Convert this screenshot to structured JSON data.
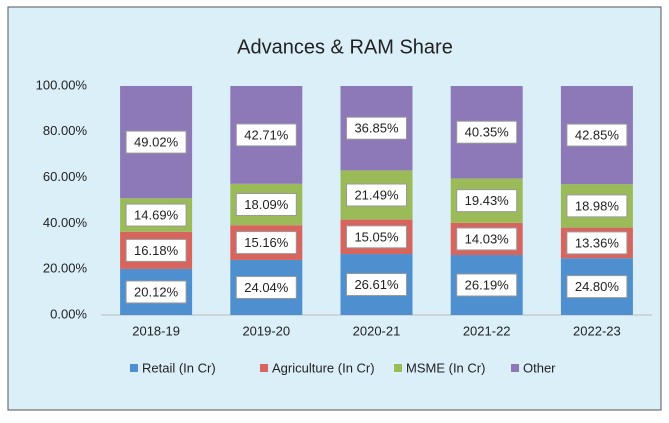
{
  "chart_data": {
    "type": "stacked_bar",
    "title": "Advances & RAM Share",
    "categories": [
      "2018-19",
      "2019-20",
      "2020-21",
      "2021-22",
      "2022-23"
    ],
    "series": [
      {
        "name": "Retail (In Cr)",
        "color": "#4e8fcf",
        "values": [
          20.12,
          24.04,
          26.61,
          26.19,
          24.8
        ],
        "value_labels": [
          "20.12%",
          "24.04%",
          "26.61%",
          "26.19%",
          "24.80%"
        ]
      },
      {
        "name": "Agriculture (In Cr)",
        "color": "#d8655d",
        "values": [
          16.18,
          15.16,
          15.05,
          14.03,
          13.36
        ],
        "value_labels": [
          "16.18%",
          "15.16%",
          "15.05%",
          "14.03%",
          "13.36%"
        ]
      },
      {
        "name": "MSME (In Cr)",
        "color": "#9bbb59",
        "values": [
          14.69,
          18.09,
          21.49,
          19.43,
          18.98
        ],
        "value_labels": [
          "14.69%",
          "18.09%",
          "21.49%",
          "19.43%",
          "18.98%"
        ]
      },
      {
        "name": "Other",
        "color": "#8d78b8",
        "values": [
          49.02,
          42.71,
          36.85,
          40.35,
          42.85
        ],
        "value_labels": [
          "49.02%",
          "42.71%",
          "36.85%",
          "40.35%",
          "42.85%"
        ]
      }
    ],
    "ylim": [
      0,
      100
    ],
    "yticks": [
      {
        "value": 0,
        "label": "0.00%"
      },
      {
        "value": 20,
        "label": "20.00%"
      },
      {
        "value": 40,
        "label": "40.00%"
      },
      {
        "value": 60,
        "label": "60.00%"
      },
      {
        "value": 80,
        "label": "80.00%"
      },
      {
        "value": 100,
        "label": "100.00%"
      }
    ],
    "legend": "bottom"
  }
}
